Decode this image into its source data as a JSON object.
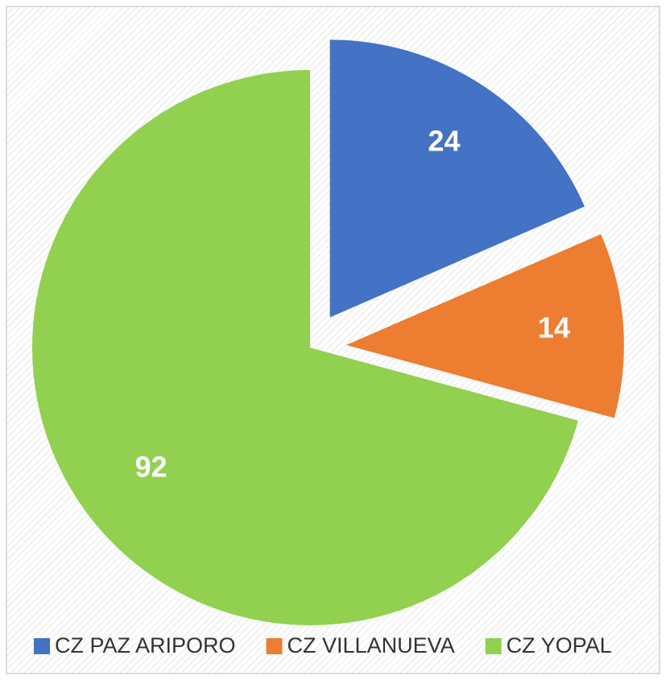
{
  "chart_data": {
    "type": "pie",
    "categories": [
      "CZ PAZ ARIPORO",
      "CZ VILLANUEVA",
      "CZ YOPAL"
    ],
    "values": [
      24,
      14,
      92
    ],
    "colors": [
      "#4472c4",
      "#ed7d31",
      "#92d050"
    ],
    "legend": "bottom"
  }
}
